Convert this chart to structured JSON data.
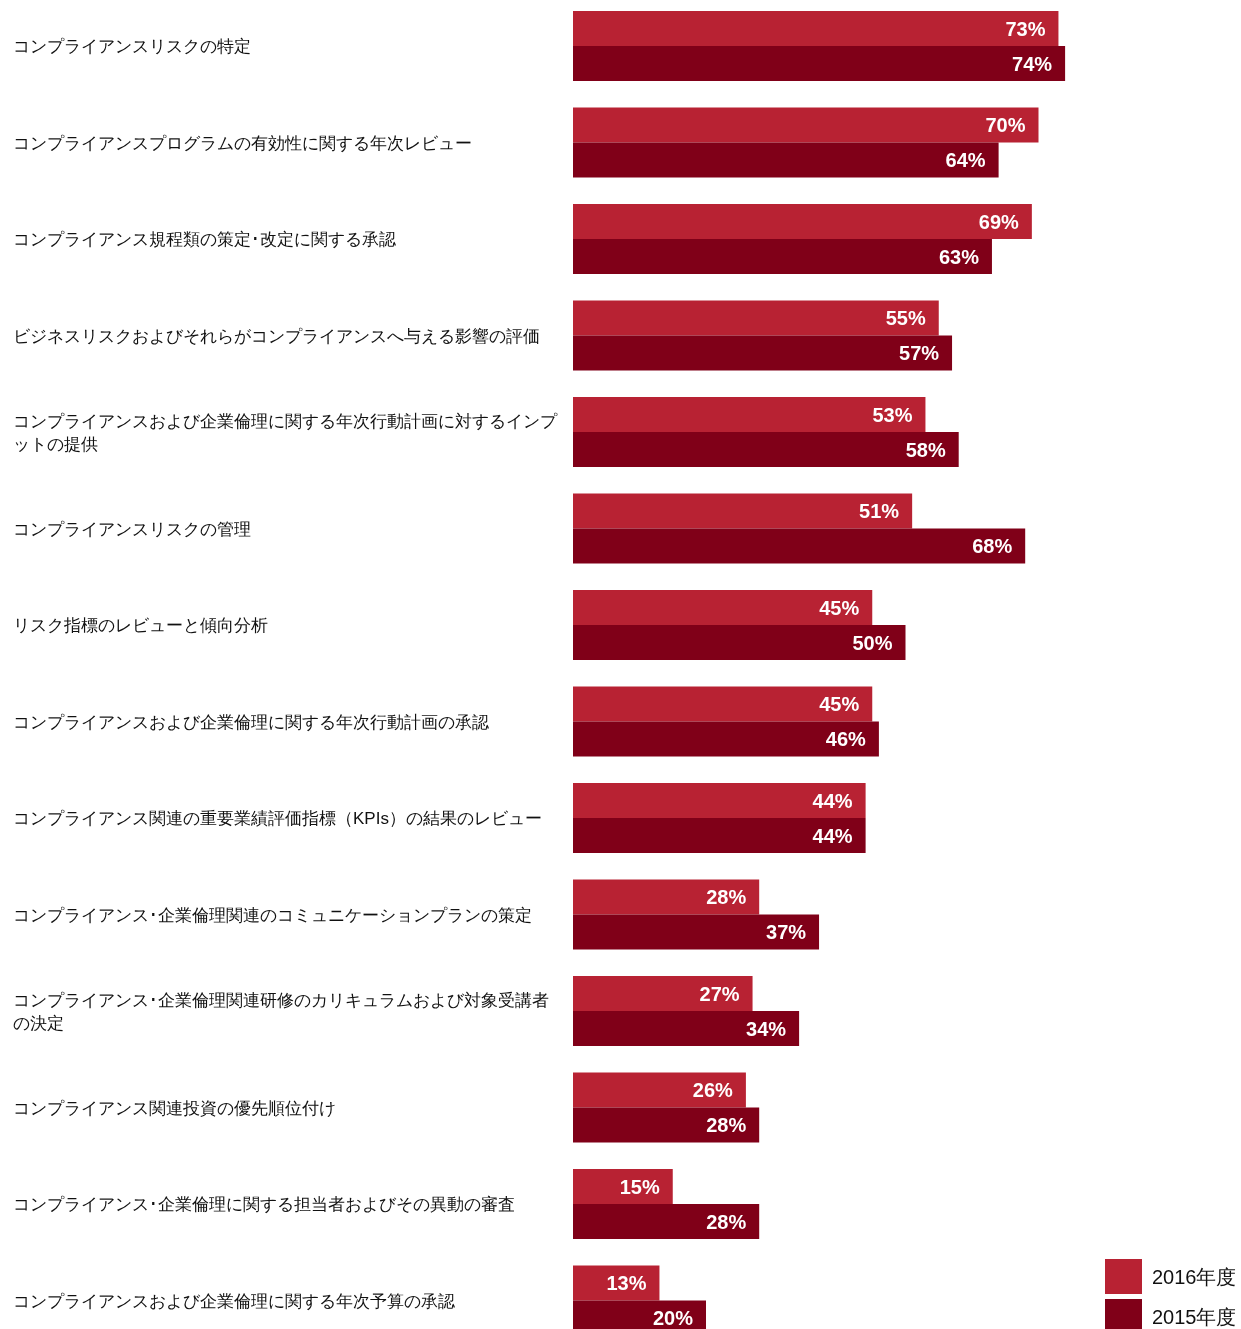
{
  "chart_data": {
    "type": "bar",
    "orientation": "horizontal",
    "legend": "bottom right",
    "categories": [
      "コンプライアンスリスクの特定",
      "コンプライアンスプログラムの有効性に関する年次レビュー",
      "コンプライアンス規程類の策定･改定に関する承認",
      "ビジネスリスクおよびそれらがコンプライアンスへ与える影響の評価",
      "コンプライアンスおよび企業倫理に関する年次行動計画に対するインプットの提供",
      "コンプライアンスリスクの管理",
      "リスク指標のレビューと傾向分析",
      "コンプライアンスおよび企業倫理に関する年次行動計画の承認",
      "コンプライアンス関連の重要業績評価指標（KPIs）の結果のレビュー",
      "コンプライアンス･企業倫理関連のコミュニケーションプランの策定",
      "コンプライアンス･企業倫理関連研修のカリキュラムおよび対象受講者の決定",
      "コンプライアンス関連投資の優先順位付け",
      "コンプライアンス･企業倫理に関する担当者およびその異動の審査",
      "コンプライアンスおよび企業倫理に関する年次予算の承認"
    ],
    "series": [
      {
        "name": "2016年度",
        "color": "#b82233",
        "values": [
          73,
          70,
          69,
          55,
          53,
          51,
          45,
          45,
          44,
          28,
          27,
          26,
          15,
          13
        ],
        "value_labels": [
          "73%",
          "70%",
          "69%",
          "55%",
          "53%",
          "51%",
          "45%",
          "45%",
          "44%",
          "28%",
          "27%",
          "26%",
          "15%",
          "13%"
        ]
      },
      {
        "name": "2015年度",
        "color": "#800018",
        "values": [
          74,
          64,
          63,
          57,
          58,
          68,
          50,
          46,
          44,
          37,
          34,
          28,
          28,
          20
        ],
        "value_labels": [
          "74%",
          "64%",
          "63%",
          "57%",
          "58%",
          "68%",
          "50%",
          "46%",
          "44%",
          "37%",
          "34%",
          "28%",
          "28%",
          "20%"
        ]
      }
    ]
  }
}
